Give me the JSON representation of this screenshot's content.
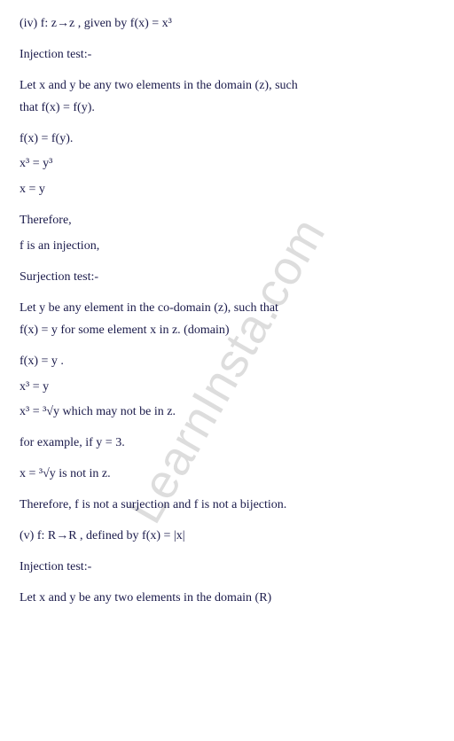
{
  "watermark": "LearnInsta.com",
  "text_color": "#1a1a4a",
  "watermark_color": "rgba(180,180,180,0.45)",
  "background_color": "#ffffff",
  "font_size": 14,
  "lines": {
    "l01": "(iv)  f: z→z , given by f(x) = x³",
    "l02": "Injection test:-",
    "l03": "Let x and y be any two elements in the domain (z), such",
    "l04": "that f(x) = f(y).",
    "l05": "f(x) = f(y).",
    "l06": "x³ = y³",
    "l07": "x = y",
    "l08": "Therefore,",
    "l09": "f is an injection,",
    "l10": "Surjection test:-",
    "l11": "Let y be any element in the co-domain (z), such that",
    "l12": "f(x) = y for some element x in z. (domain)",
    "l13": "f(x) = y .",
    "l14": "x³ = y",
    "l15": "x³ = ³√y  which may not be in z.",
    "l16": "for example, if y = 3.",
    "l17": "x = ³√y is not in z.",
    "l18": "Therefore, f is not a surjection and f is not a bijection.",
    "l19": "(v)  f: R→R , defined by f(x) = |x|",
    "l20": "Injection test:-",
    "l21": "Let x and y be any two elements in the domain (R)"
  }
}
